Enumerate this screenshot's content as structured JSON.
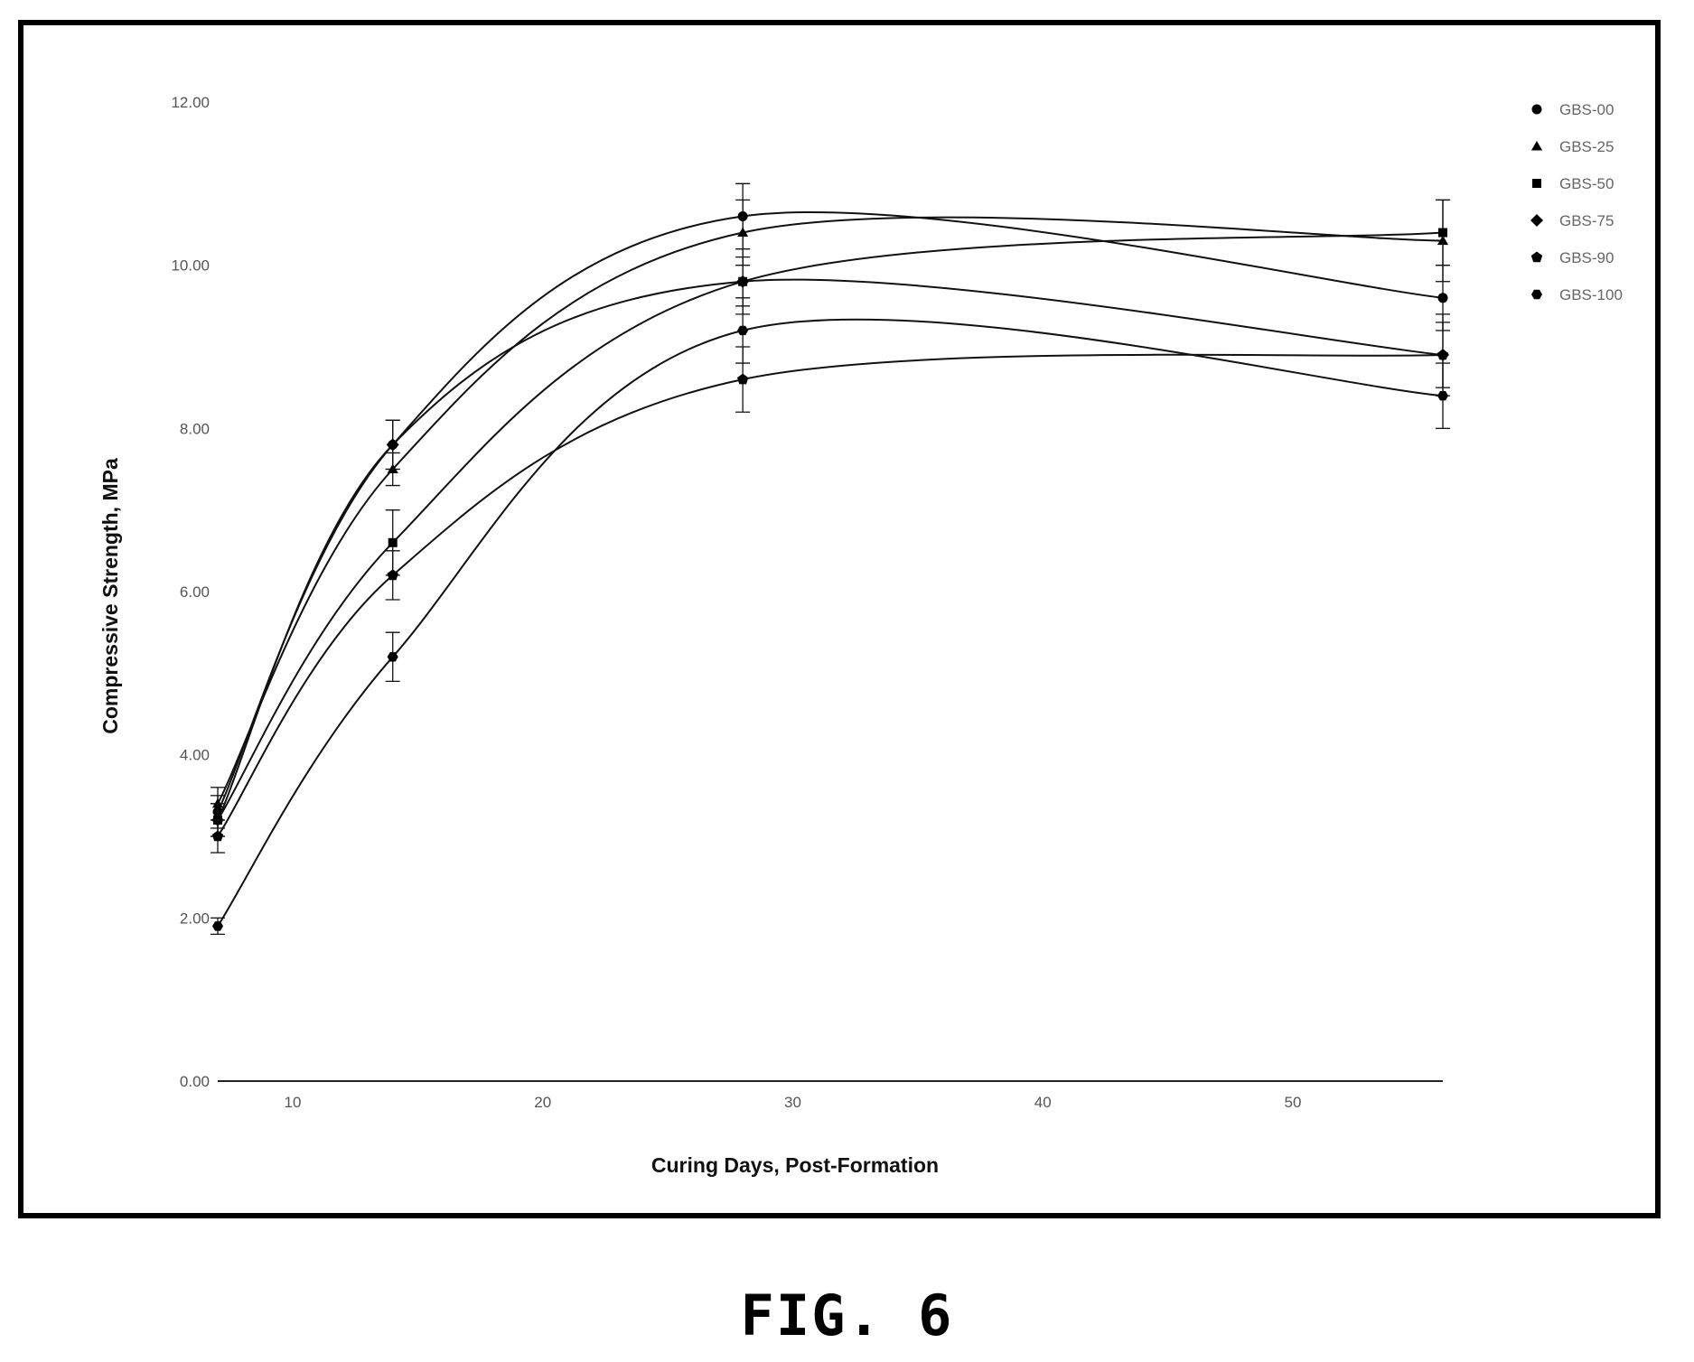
{
  "figure": {
    "caption": "FIG. 6"
  },
  "chart_data": {
    "type": "line",
    "title": "",
    "xlabel": "Curing Days, Post-Formation",
    "ylabel": "Compressive Strength, MPa",
    "xlim": [
      7,
      56
    ],
    "ylim": [
      0,
      12
    ],
    "x_ticks": [
      10,
      20,
      30,
      40,
      50
    ],
    "x_tick_labels": [
      "10",
      "20",
      "30",
      "40",
      "50"
    ],
    "y_ticks": [
      0,
      2,
      4,
      6,
      8,
      10,
      12
    ],
    "y_tick_labels": [
      "0.00",
      "2.00",
      "4.00",
      "6.00",
      "8.00",
      "10.00",
      "12.00"
    ],
    "grid": false,
    "legend_position": "top-right",
    "x": [
      7,
      14,
      28,
      56
    ],
    "series": [
      {
        "name": "GBS-00",
        "marker": "circle",
        "values": [
          3.3,
          7.8,
          10.6,
          9.6
        ],
        "errors": [
          0.2,
          0.3,
          0.4,
          0.4
        ]
      },
      {
        "name": "GBS-25",
        "marker": "triangle",
        "values": [
          3.4,
          7.5,
          10.4,
          10.3
        ],
        "errors": [
          0.2,
          0.2,
          0.4,
          0.5
        ]
      },
      {
        "name": "GBS-50",
        "marker": "square",
        "values": [
          3.2,
          6.6,
          9.8,
          10.4
        ],
        "errors": [
          0.2,
          0.4,
          0.3,
          0.4
        ]
      },
      {
        "name": "GBS-75",
        "marker": "diamond",
        "values": [
          3.2,
          7.8,
          9.8,
          8.9
        ],
        "errors": [
          0.2,
          0.3,
          0.4,
          0.5
        ]
      },
      {
        "name": "GBS-90",
        "marker": "pentagon",
        "values": [
          3.0,
          6.2,
          8.6,
          8.9
        ],
        "errors": [
          0.2,
          0.3,
          0.4,
          0.4
        ]
      },
      {
        "name": "GBS-100",
        "marker": "hexagon",
        "values": [
          1.9,
          5.2,
          9.2,
          8.4
        ],
        "errors": [
          0.1,
          0.3,
          0.4,
          0.4
        ]
      }
    ]
  }
}
